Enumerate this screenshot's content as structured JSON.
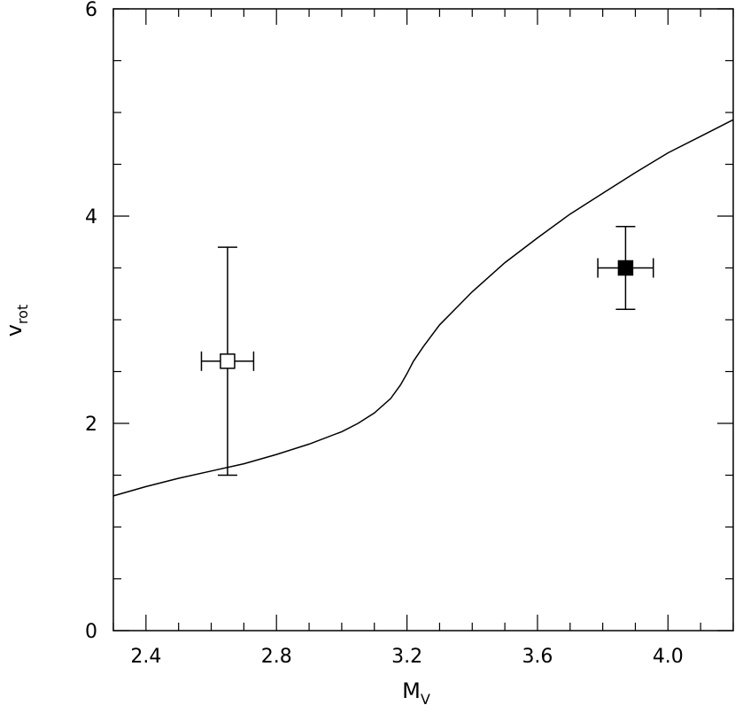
{
  "chart_data": {
    "type": "scatter",
    "xlabel": "M",
    "xlabel_sub": "V",
    "ylabel": "v",
    "ylabel_sub": "rot",
    "xlim": [
      2.3,
      4.2
    ],
    "ylim": [
      0,
      6
    ],
    "x_ticks": [
      "2.4",
      "2.8",
      "3.2",
      "3.6",
      "4.0"
    ],
    "y_ticks": [
      "0",
      "2",
      "4",
      "6"
    ],
    "grid": false,
    "series": [
      {
        "style": "line",
        "color": "#000000",
        "x": [
          2.3,
          2.4,
          2.5,
          2.6,
          2.7,
          2.8,
          2.9,
          3.0,
          3.05,
          3.1,
          3.15,
          3.18,
          3.2,
          3.22,
          3.25,
          3.3,
          3.4,
          3.5,
          3.6,
          3.7,
          3.8,
          3.9,
          4.0,
          4.1,
          4.2
        ],
        "y": [
          1.3,
          1.39,
          1.47,
          1.54,
          1.61,
          1.7,
          1.8,
          1.92,
          2.0,
          2.1,
          2.24,
          2.37,
          2.48,
          2.6,
          2.74,
          2.95,
          3.27,
          3.55,
          3.79,
          4.02,
          4.22,
          4.42,
          4.61,
          4.77,
          4.93
        ]
      },
      {
        "style": "points",
        "color": "#000000",
        "points": [
          {
            "x": 2.65,
            "y": 2.6,
            "x_err": 0.08,
            "y_err_low": 1.1,
            "y_err_high": 1.1,
            "marker": "open-square"
          },
          {
            "x": 3.87,
            "y": 3.5,
            "x_err": 0.085,
            "y_err_low": 0.4,
            "y_err_high": 0.4,
            "marker": "filled-square"
          }
        ]
      }
    ]
  }
}
